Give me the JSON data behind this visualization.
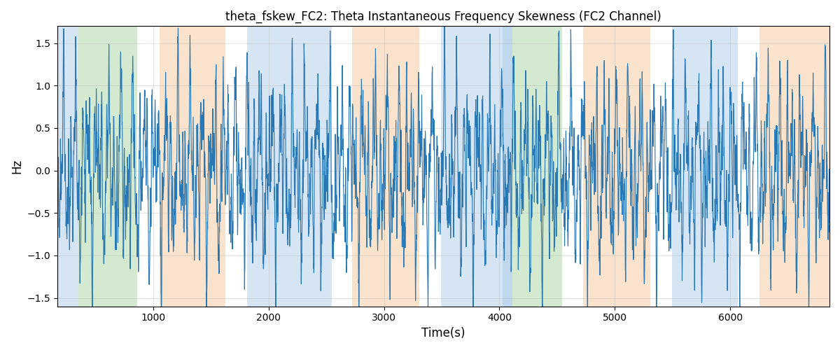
{
  "title": "theta_fskew_FC2: Theta Instantaneous Frequency Skewness (FC2 Channel)",
  "xlabel": "Time(s)",
  "ylabel": "Hz",
  "ylim": [
    -1.6,
    1.7
  ],
  "xlim": [
    170,
    6860
  ],
  "background_regions": [
    {
      "xmin": 170,
      "xmax": 355,
      "color": "#aecde8",
      "alpha": 0.5
    },
    {
      "xmin": 355,
      "xmax": 865,
      "color": "#a8d5a2",
      "alpha": 0.5
    },
    {
      "xmin": 1055,
      "xmax": 1625,
      "color": "#f5c99a",
      "alpha": 0.5
    },
    {
      "xmin": 1815,
      "xmax": 2545,
      "color": "#aecde8",
      "alpha": 0.5
    },
    {
      "xmin": 2725,
      "xmax": 3305,
      "color": "#f5c99a",
      "alpha": 0.5
    },
    {
      "xmin": 3495,
      "xmax": 4025,
      "color": "#aecde8",
      "alpha": 0.5
    },
    {
      "xmin": 4025,
      "xmax": 4110,
      "color": "#aecde8",
      "alpha": 0.8
    },
    {
      "xmin": 4110,
      "xmax": 4545,
      "color": "#a8d5a2",
      "alpha": 0.5
    },
    {
      "xmin": 4725,
      "xmax": 5305,
      "color": "#f5c99a",
      "alpha": 0.5
    },
    {
      "xmin": 5495,
      "xmax": 6065,
      "color": "#aecde8",
      "alpha": 0.5
    },
    {
      "xmin": 6255,
      "xmax": 6860,
      "color": "#f5c99a",
      "alpha": 0.5
    }
  ],
  "line_color": "#2878b5",
  "line_width": 0.8,
  "grid": true,
  "grid_color": "#b0b0b0",
  "grid_alpha": 0.5,
  "grid_linewidth": 0.5,
  "tick_fontsize": 10,
  "label_fontsize": 12,
  "title_fontsize": 12,
  "seed": 42
}
